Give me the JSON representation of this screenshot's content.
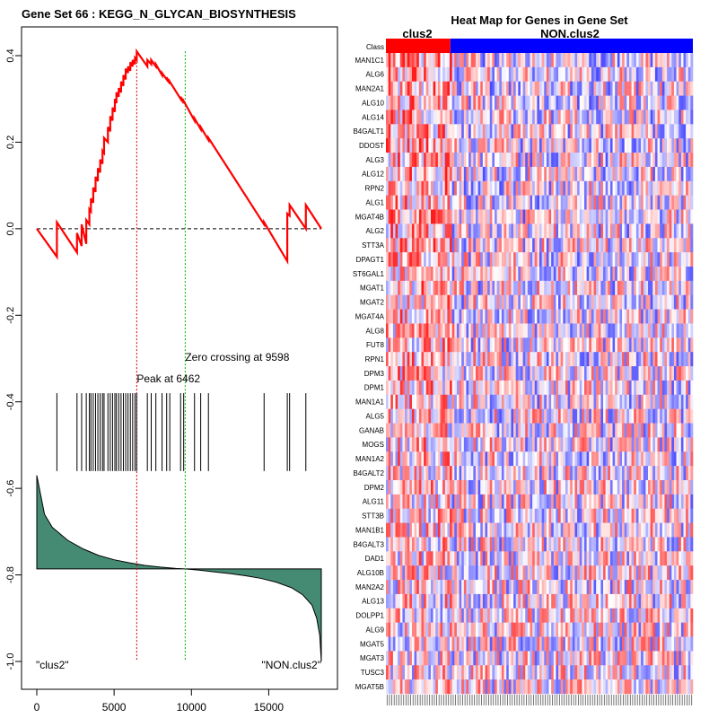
{
  "chart_data": [
    {
      "type": "line",
      "title": "Gene Set  66 : KEGG_N_GLYCAN_BIOSYNTHESIS",
      "xlabel": "",
      "ylabel": "",
      "xlim": [
        0,
        18500
      ],
      "ylim": [
        -1.0,
        0.42
      ],
      "x_ticks": [
        0,
        5000,
        10000,
        15000
      ],
      "x_tick_labels": [
        "0",
        "5000",
        "10000",
        "15000"
      ],
      "y_ticks": [
        -1.0,
        -0.8,
        -0.6,
        -0.4,
        -0.2,
        0.0,
        0.2,
        0.4
      ],
      "y_tick_labels": [
        "-1.0",
        "-0.8",
        "-0.6",
        "-0.4",
        "-0.2",
        "0.0",
        "0.2",
        "0.4"
      ],
      "peak_position": 6462,
      "zero_crossing": 9598,
      "annotations": {
        "peak": "Peak at 6462",
        "zero": "Zero crossing at 9598",
        "left_class": "\"clus2\"",
        "right_class": "\"NON.clus2\""
      },
      "hit_positions": [
        1300,
        2600,
        2900,
        3200,
        3400,
        3500,
        3650,
        3800,
        3950,
        4100,
        4250,
        4350,
        4600,
        4750,
        4900,
        5050,
        5150,
        5300,
        5450,
        5600,
        5750,
        5900,
        6050,
        6200,
        6350,
        6462,
        7150,
        7400,
        7700,
        8100,
        8400,
        8600,
        9300,
        9500,
        10200,
        10600,
        11100,
        14700,
        16200,
        16350,
        17400
      ],
      "enrichment_score": {
        "x": [
          0,
          1300,
          1300,
          2600,
          2600,
          2900,
          2900,
          3200,
          3200,
          3400,
          3400,
          3500,
          3500,
          3650,
          3650,
          3800,
          3800,
          3950,
          3950,
          4100,
          4100,
          4250,
          4250,
          4350,
          4350,
          4600,
          4600,
          4750,
          4750,
          4900,
          4900,
          5050,
          5050,
          5150,
          5150,
          5300,
          5300,
          5450,
          5450,
          5600,
          5600,
          5750,
          5750,
          5900,
          5900,
          6050,
          6050,
          6200,
          6200,
          6350,
          6350,
          6462,
          6462,
          7150,
          7150,
          7400,
          7400,
          7700,
          7700,
          8100,
          8100,
          8400,
          8400,
          8600,
          8600,
          9300,
          9300,
          9500,
          9500,
          10200,
          10200,
          10600,
          10600,
          11100,
          11100,
          14700,
          14700,
          16200,
          16200,
          16350,
          16350,
          17400,
          17400,
          18400
        ],
        "values": [
          0.0,
          -0.065,
          0.015,
          -0.055,
          -0.01,
          -0.04,
          0.01,
          -0.035,
          0.02,
          0.01,
          0.045,
          0.04,
          0.07,
          0.06,
          0.095,
          0.085,
          0.12,
          0.11,
          0.14,
          0.13,
          0.16,
          0.15,
          0.18,
          0.175,
          0.21,
          0.2,
          0.235,
          0.225,
          0.26,
          0.25,
          0.28,
          0.27,
          0.3,
          0.29,
          0.315,
          0.305,
          0.325,
          0.315,
          0.34,
          0.33,
          0.355,
          0.345,
          0.37,
          0.36,
          0.375,
          0.365,
          0.385,
          0.375,
          0.39,
          0.38,
          0.395,
          0.39,
          0.41,
          0.375,
          0.39,
          0.38,
          0.39,
          0.375,
          0.38,
          0.355,
          0.36,
          0.345,
          0.35,
          0.335,
          0.34,
          0.3,
          0.305,
          0.29,
          0.295,
          0.25,
          0.255,
          0.23,
          0.235,
          0.205,
          0.21,
          0.01,
          0.015,
          -0.075,
          0.035,
          0.03,
          0.055,
          0.0,
          0.055,
          0.0
        ]
      },
      "ranked_metric": {
        "x": [
          0,
          500,
          1000,
          2000,
          3000,
          4000,
          5000,
          6000,
          7000,
          8000,
          9000,
          9598,
          10500,
          11500,
          12500,
          13500,
          14500,
          15500,
          16500,
          17200,
          17800,
          18100,
          18300,
          18400
        ],
        "values": [
          -0.57,
          -0.66,
          -0.69,
          -0.72,
          -0.74,
          -0.755,
          -0.765,
          -0.772,
          -0.778,
          -0.782,
          -0.785,
          -0.786,
          -0.789,
          -0.793,
          -0.797,
          -0.802,
          -0.808,
          -0.817,
          -0.83,
          -0.846,
          -0.87,
          -0.9,
          -0.94,
          -1.0
        ],
        "baseline": -0.786
      },
      "colors": {
        "es_line": "#ff0000",
        "metric_fill": "#458b74",
        "peak_line": "#cd0000",
        "zero_line": "#00b400"
      }
    },
    {
      "type": "heatmap",
      "title": "Heat Map for Genes in Gene Set",
      "class_row_label": "Class",
      "class_labels": [
        "clus2",
        "NON.clus2"
      ],
      "class_colors": [
        "#ff0000",
        "#0000ff"
      ],
      "class_fraction": 0.21,
      "rows": [
        "MAN1C1",
        "ALG6",
        "MAN2A1",
        "ALG10",
        "ALG14",
        "B4GALT1",
        "DDOST",
        "ALG3",
        "ALG12",
        "RPN2",
        "ALG1",
        "MGAT4B",
        "ALG2",
        "STT3A",
        "DPAGT1",
        "ST6GAL1",
        "MGAT1",
        "MGAT2",
        "MGAT4A",
        "ALG8",
        "FUT8",
        "RPN1",
        "DPM3",
        "DPM1",
        "MAN1A1",
        "ALG5",
        "GANAB",
        "MOGS",
        "MAN1A2",
        "B4GALT2",
        "DPM2",
        "ALG11",
        "STT3B",
        "MAN1B1",
        "B4GALT3",
        "DAD1",
        "ALG10B",
        "MAN2A2",
        "ALG13",
        "DOLPP1",
        "ALG9",
        "MGAT5",
        "MGAT3",
        "TUSC3",
        "MGAT5B"
      ],
      "n_columns": 130,
      "value_range": [
        -1,
        1
      ]
    }
  ]
}
